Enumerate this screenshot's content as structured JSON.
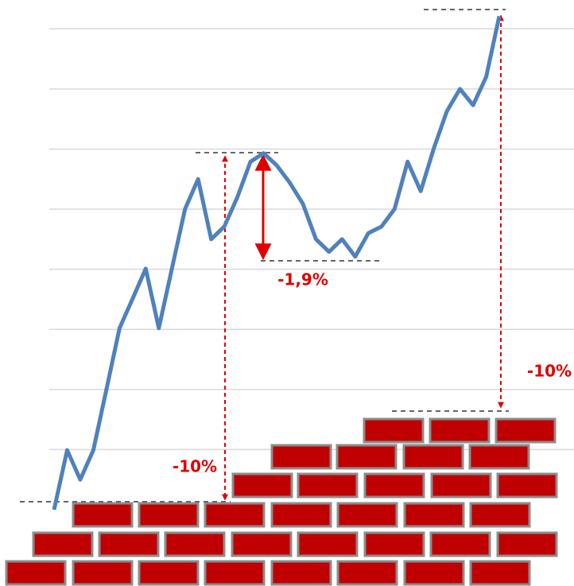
{
  "chart_data": {
    "type": "line",
    "x": [
      0,
      1,
      2,
      3,
      4,
      5,
      6,
      7,
      8,
      9,
      10,
      11,
      12,
      13,
      14,
      15,
      16,
      17,
      18,
      19,
      20,
      21,
      22,
      23,
      24,
      25,
      26,
      27,
      28,
      29,
      30,
      31,
      32,
      33,
      34
    ],
    "series": [
      {
        "color": "#4f81bd",
        "values": [
          0,
          0.99,
          0.5,
          0.99,
          2.0,
          3.02,
          3.51,
          4.01,
          3.02,
          4.01,
          5.0,
          5.5,
          4.5,
          4.71,
          5.2,
          5.79,
          5.93,
          5.73,
          5.44,
          5.09,
          4.5,
          4.29,
          4.5,
          4.21,
          4.6,
          4.71,
          5.0,
          5.79,
          5.3,
          6.01,
          6.63,
          7.0,
          6.73,
          7.2,
          8.21
        ]
      }
    ],
    "xlim": [
      0,
      34
    ],
    "ylim": [
      0,
      8.48
    ],
    "yticks": [
      1,
      2,
      3,
      4,
      5,
      6,
      7,
      8
    ],
    "grid": true,
    "annotations": [
      "-1,9%",
      "-10%",
      "-10%"
    ]
  }
}
